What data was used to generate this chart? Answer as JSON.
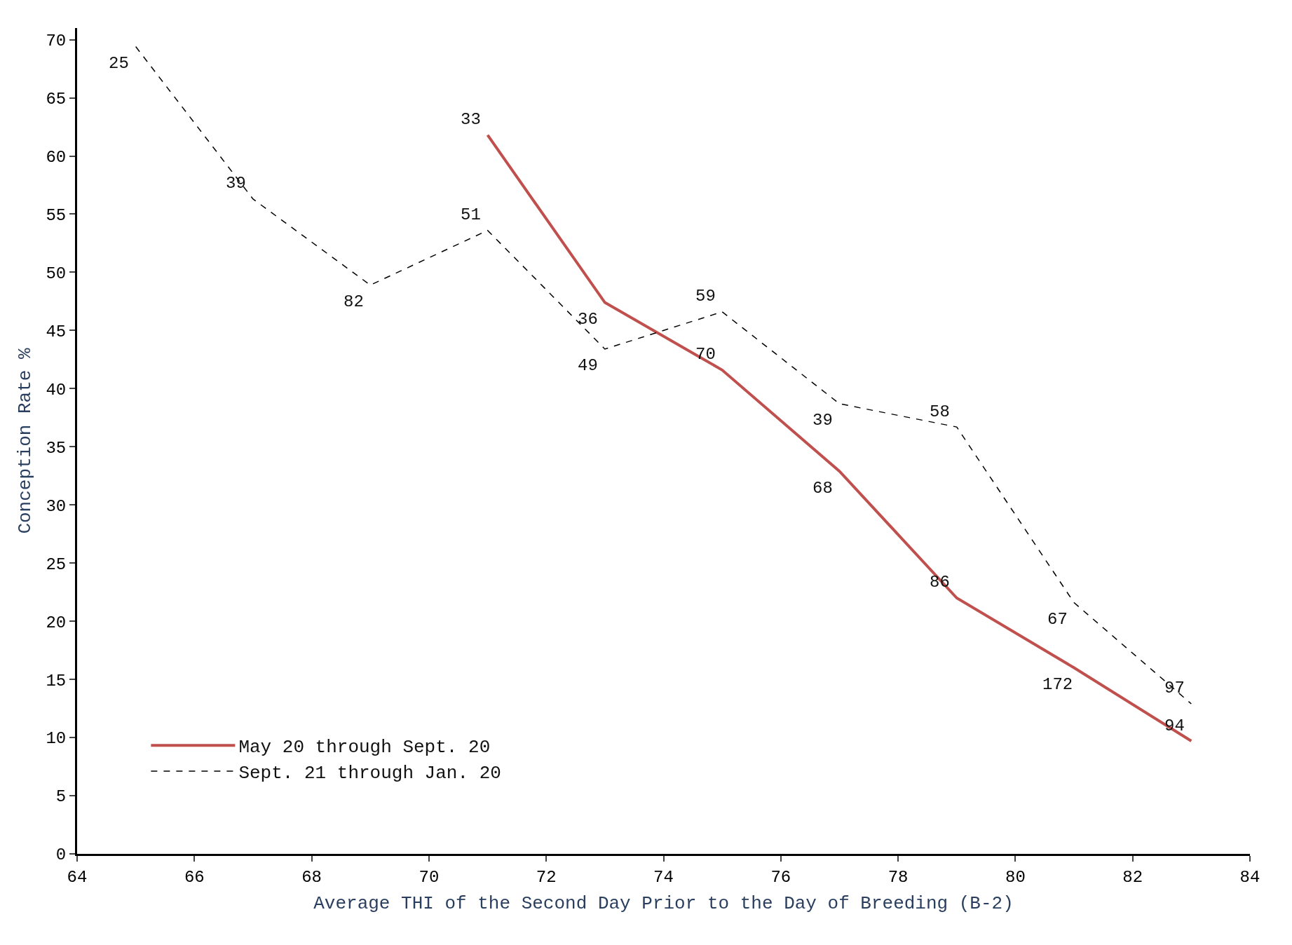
{
  "chart_data": {
    "type": "line",
    "xlabel": "Average THI of the Second Day Prior to the Day of Breeding (B-2)",
    "ylabel": "Conception Rate %",
    "xlim": [
      64,
      84
    ],
    "xticks": [
      64,
      66,
      68,
      70,
      72,
      74,
      76,
      78,
      80,
      82,
      84
    ],
    "ylim": [
      0,
      71
    ],
    "yticks": [
      0,
      5,
      10,
      15,
      20,
      25,
      30,
      35,
      40,
      45,
      50,
      55,
      60,
      65,
      70
    ],
    "legend": "bottom left",
    "marker": "none",
    "series": [
      {
        "name": "May 20 through Sept. 20",
        "color": "#c0504d",
        "line_style": "solid",
        "x": [
          71,
          73,
          75,
          77,
          79,
          81,
          83
        ],
        "values": [
          61.8,
          47.4,
          41.6,
          32.9,
          22.0,
          16.0,
          9.7
        ]
      },
      {
        "name": "Sept. 21 through Jan. 20",
        "color": "#000000",
        "line_style": "dashed",
        "x": [
          65,
          67,
          69,
          71,
          73,
          75,
          77,
          79,
          81,
          83
        ],
        "values": [
          69.4,
          56.3,
          48.9,
          53.6,
          43.4,
          46.6,
          38.7,
          36.7,
          21.6,
          12.9
        ]
      }
    ],
    "annotations": [
      {
        "text": "33",
        "x": 71,
        "y": 61.8
      },
      {
        "text": "36",
        "x": 73,
        "y": 47.4
      },
      {
        "text": "70",
        "x": 75,
        "y": 41.6
      },
      {
        "text": "68",
        "x": 77,
        "y": 32.9
      },
      {
        "text": "86",
        "x": 79,
        "y": 22.0
      },
      {
        "text": "172",
        "x": 81,
        "y": 16.0
      },
      {
        "text": "94",
        "x": 83,
        "y": 9.7
      },
      {
        "text": "25",
        "x": 65,
        "y": 69.4
      },
      {
        "text": "39",
        "x": 67,
        "y": 56.3
      },
      {
        "text": "82",
        "x": 69,
        "y": 48.9
      },
      {
        "text": "51",
        "x": 71,
        "y": 53.6
      },
      {
        "text": "49",
        "x": 73,
        "y": 43.4
      },
      {
        "text": "59",
        "x": 75,
        "y": 46.6
      },
      {
        "text": "39",
        "x": 77,
        "y": 38.7
      },
      {
        "text": "58",
        "x": 79,
        "y": 36.7
      },
      {
        "text": "67",
        "x": 81,
        "y": 21.6
      },
      {
        "text": "97",
        "x": 83,
        "y": 12.9
      }
    ]
  }
}
